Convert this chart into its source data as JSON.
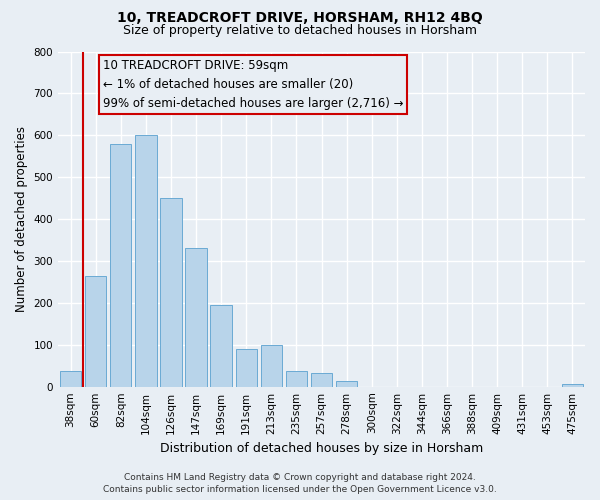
{
  "title": "10, TREADCROFT DRIVE, HORSHAM, RH12 4BQ",
  "subtitle": "Size of property relative to detached houses in Horsham",
  "xlabel": "Distribution of detached houses by size in Horsham",
  "ylabel": "Number of detached properties",
  "bar_labels": [
    "38sqm",
    "60sqm",
    "82sqm",
    "104sqm",
    "126sqm",
    "147sqm",
    "169sqm",
    "191sqm",
    "213sqm",
    "235sqm",
    "257sqm",
    "278sqm",
    "300sqm",
    "322sqm",
    "344sqm",
    "366sqm",
    "388sqm",
    "409sqm",
    "431sqm",
    "453sqm",
    "475sqm"
  ],
  "bar_heights": [
    38,
    263,
    580,
    600,
    450,
    330,
    195,
    90,
    100,
    38,
    32,
    13,
    0,
    0,
    0,
    0,
    0,
    0,
    0,
    0,
    7
  ],
  "bar_color": "#b8d4ea",
  "bar_edge_color": "#6aaad4",
  "red_line_x": 0.5,
  "highlight_color": "#cc0000",
  "ylim": [
    0,
    800
  ],
  "yticks": [
    0,
    100,
    200,
    300,
    400,
    500,
    600,
    700,
    800
  ],
  "annotation_text": "10 TREADCROFT DRIVE: 59sqm\n← 1% of detached houses are smaller (20)\n99% of semi-detached houses are larger (2,716) →",
  "footer_line1": "Contains HM Land Registry data © Crown copyright and database right 2024.",
  "footer_line2": "Contains public sector information licensed under the Open Government Licence v3.0.",
  "bg_color": "#e8eef4",
  "grid_color": "#ffffff",
  "title_fontsize": 10,
  "subtitle_fontsize": 9,
  "ylabel_fontsize": 8.5,
  "xlabel_fontsize": 9,
  "tick_fontsize": 7.5,
  "annotation_fontsize": 8.5,
  "footer_fontsize": 6.5
}
